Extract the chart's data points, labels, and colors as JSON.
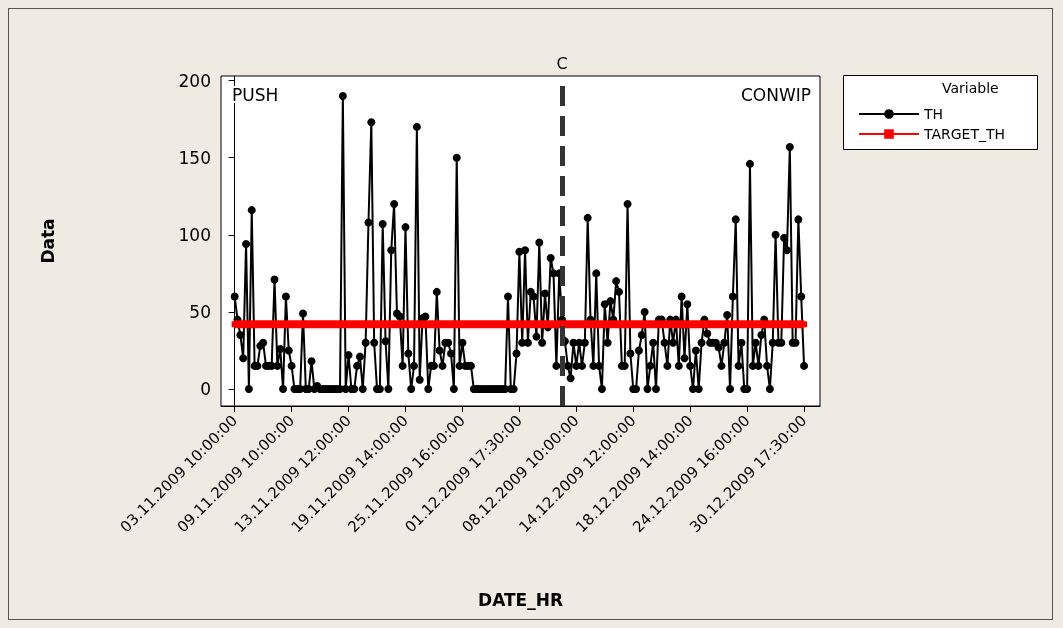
{
  "chart_data": {
    "type": "line",
    "xlabel": "DATE_HR",
    "ylabel": "Data",
    "legend_title": "Variable",
    "legend": "right",
    "grid": false,
    "line_style": "solid",
    "ylim": [
      -11,
      203
    ],
    "categories": [
      "03.11.2009 10:00:00",
      null,
      null,
      null,
      null,
      null,
      null,
      null,
      null,
      null,
      null,
      null,
      null,
      null,
      null,
      null,
      null,
      null,
      null,
      null,
      "09.11.2009 10:00:00",
      null,
      null,
      null,
      null,
      null,
      null,
      null,
      null,
      null,
      null,
      null,
      null,
      null,
      null,
      null,
      null,
      null,
      null,
      null,
      "13.11.2009 12:00:00",
      null,
      null,
      null,
      null,
      null,
      null,
      null,
      null,
      null,
      null,
      null,
      null,
      null,
      null,
      null,
      null,
      null,
      null,
      null,
      "19.11.2009 14:00:00",
      null,
      null,
      null,
      null,
      null,
      null,
      null,
      null,
      null,
      null,
      null,
      null,
      null,
      null,
      null,
      null,
      null,
      null,
      null,
      "25.11.2009 16:00:00",
      null,
      null,
      null,
      null,
      null,
      null,
      null,
      null,
      null,
      null,
      null,
      null,
      null,
      null,
      null,
      null,
      null,
      null,
      null,
      "01.12.2009 17:30:00",
      null,
      null,
      null,
      null,
      null,
      null,
      null,
      null,
      null,
      null,
      null,
      null,
      null,
      null,
      null,
      null,
      null,
      null,
      null,
      "08.12.2009 10:00:00",
      null,
      null,
      null,
      null,
      null,
      null,
      null,
      null,
      null,
      null,
      null,
      null,
      null,
      null,
      null,
      null,
      null,
      null,
      null,
      "14.12.2009 12:00:00",
      null,
      null,
      null,
      null,
      null,
      null,
      null,
      null,
      null,
      null,
      null,
      null,
      null,
      null,
      null,
      null,
      null,
      null,
      null,
      "18.12.2009 14:00:00",
      null,
      null,
      null,
      null,
      null,
      null,
      null,
      null,
      null,
      null,
      null,
      null,
      null,
      null,
      null,
      null,
      null,
      null,
      null,
      "24.12.2009 16:00:00",
      null,
      null,
      null,
      null,
      null,
      null,
      null,
      null,
      null,
      null,
      null,
      null,
      null,
      null,
      null,
      null,
      null,
      null,
      null,
      "30.12.2009 17:30:00"
    ],
    "yticks": [
      0,
      50,
      100,
      150,
      200
    ],
    "annotations": [
      "PUSH",
      "CONWIP",
      "C"
    ],
    "series": [
      {
        "name": "TH",
        "color": "#000000",
        "marker": "circle",
        "values": [
          60,
          45,
          35,
          20,
          94,
          0,
          116,
          15,
          15,
          28,
          30,
          15,
          15,
          15,
          71,
          15,
          26,
          0,
          60,
          25,
          15,
          0,
          0,
          0,
          49,
          0,
          0,
          18,
          0,
          2,
          0,
          0,
          0,
          0,
          0,
          0,
          0,
          0,
          190,
          0,
          22,
          0,
          0,
          15,
          21,
          0,
          30,
          108,
          173,
          30,
          0,
          0,
          107,
          31,
          0,
          90,
          120,
          49,
          47,
          15,
          105,
          23,
          0,
          15,
          170,
          6,
          46,
          47,
          0,
          15,
          15,
          63,
          25,
          15,
          30,
          30,
          23,
          0,
          150,
          15,
          30,
          15,
          15,
          15,
          0,
          0,
          0,
          0,
          0,
          0,
          0,
          0,
          0,
          0,
          0,
          0,
          60,
          0,
          0,
          23,
          89,
          30,
          90,
          30,
          63,
          60,
          34,
          95,
          30,
          62,
          40,
          85,
          75,
          15,
          75,
          45,
          31,
          15,
          7,
          30,
          15,
          30,
          15,
          30,
          111,
          45,
          15,
          75,
          15,
          0,
          55,
          30,
          57,
          45,
          70,
          63,
          15,
          15,
          120,
          23,
          0,
          0,
          25,
          35,
          50,
          0,
          15,
          30,
          0,
          45,
          45,
          30,
          15,
          45,
          30,
          45,
          15,
          60,
          20,
          55,
          15,
          0,
          25,
          0,
          30,
          45,
          36,
          30,
          30,
          30,
          27,
          15,
          30,
          48,
          0,
          60,
          110,
          15,
          30,
          0,
          0,
          146,
          15,
          30,
          15,
          35,
          45,
          15,
          0,
          30,
          100,
          30,
          30,
          98,
          90,
          157,
          30,
          30,
          110,
          60,
          15
        ]
      },
      {
        "name": "TARGET_TH",
        "color": "#ff0000",
        "marker": "square",
        "values": [
          42,
          42,
          42,
          42,
          42,
          42,
          42,
          42,
          42,
          42,
          42,
          42,
          42,
          42,
          42,
          42,
          42,
          42,
          42,
          42,
          42,
          42,
          42,
          42,
          42,
          42,
          42,
          42,
          42,
          42,
          42,
          42,
          42,
          42,
          42,
          42,
          42,
          42,
          42,
          42,
          42,
          42,
          42,
          42,
          42,
          42,
          42,
          42,
          42,
          42,
          42,
          42,
          42,
          42,
          42,
          42,
          42,
          42,
          42,
          42,
          42,
          42,
          42,
          42,
          42,
          42,
          42,
          42,
          42,
          42,
          42,
          42,
          42,
          42,
          42,
          42,
          42,
          42,
          42,
          42,
          42,
          42,
          42,
          42,
          42,
          42,
          42,
          42,
          42,
          42,
          42,
          42,
          42,
          42,
          42,
          42,
          42,
          42,
          42,
          42,
          42,
          42,
          42,
          42,
          42,
          42,
          42,
          42,
          42,
          42,
          42,
          42,
          42,
          42,
          42,
          42,
          42,
          42,
          42,
          42,
          42,
          42,
          42,
          42,
          42,
          42,
          42,
          42,
          42,
          42,
          42,
          42,
          42,
          42,
          42,
          42,
          42,
          42,
          42,
          42,
          42,
          42,
          42,
          42,
          42,
          42,
          42,
          42,
          42,
          42,
          42,
          42,
          42,
          42,
          42,
          42,
          42,
          42,
          42,
          42,
          42,
          42,
          42,
          42,
          42,
          42,
          42,
          42,
          42,
          42,
          42,
          42,
          42,
          42,
          42,
          42,
          42,
          42,
          42,
          42,
          42,
          42,
          42,
          42,
          42,
          42,
          42,
          42,
          42,
          42,
          42,
          42,
          42,
          42,
          42,
          42,
          42,
          42,
          42,
          42,
          42
        ]
      }
    ]
  }
}
